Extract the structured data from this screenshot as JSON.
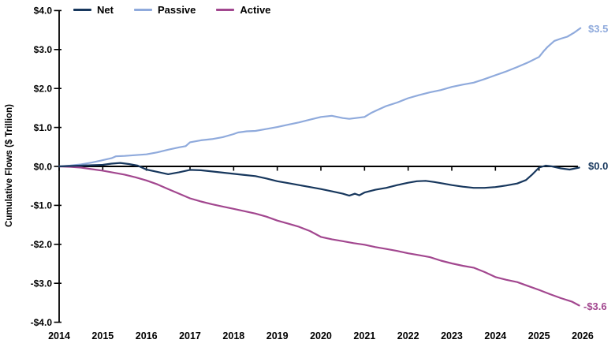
{
  "chart_data": {
    "type": "line",
    "title": "",
    "xlabel": "",
    "ylabel": "Cumulative Flows ($ Trillion)",
    "xlim": [
      2014,
      2026
    ],
    "ylim": [
      -4.0,
      4.0
    ],
    "grid": false,
    "legend_position": "top-left",
    "axis_color": "#000000",
    "x_ticks": [
      2014,
      2015,
      2016,
      2017,
      2018,
      2019,
      2020,
      2021,
      2022,
      2023,
      2024,
      2025,
      2026
    ],
    "y_ticks": [
      {
        "value": 4.0,
        "label": "$4.0"
      },
      {
        "value": 3.0,
        "label": "$3.0"
      },
      {
        "value": 2.0,
        "label": "$2.0"
      },
      {
        "value": 1.0,
        "label": "$1.0"
      },
      {
        "value": 0.0,
        "label": "$0.0"
      },
      {
        "value": -1.0,
        "label": "-$1.0"
      },
      {
        "value": -2.0,
        "label": "-$2.0"
      },
      {
        "value": -3.0,
        "label": "-$3.0"
      },
      {
        "value": -4.0,
        "label": "-$4.0"
      }
    ],
    "series": [
      {
        "name": "Net",
        "color": "#17375d",
        "end_label": "$0.0",
        "end_value": 0.0,
        "points": [
          [
            2014,
            0
          ],
          [
            2014.25,
            0.01
          ],
          [
            2014.5,
            0.02
          ],
          [
            2014.75,
            0.03
          ],
          [
            2015,
            0.04
          ],
          [
            2015.2,
            0.07
          ],
          [
            2015.4,
            0.09
          ],
          [
            2015.6,
            0.06
          ],
          [
            2015.8,
            0.02
          ],
          [
            2016,
            -0.08
          ],
          [
            2016.25,
            -0.14
          ],
          [
            2016.5,
            -0.2
          ],
          [
            2016.75,
            -0.15
          ],
          [
            2017,
            -0.09
          ],
          [
            2017.25,
            -0.1
          ],
          [
            2017.5,
            -0.13
          ],
          [
            2017.75,
            -0.16
          ],
          [
            2018,
            -0.19
          ],
          [
            2018.25,
            -0.22
          ],
          [
            2018.5,
            -0.25
          ],
          [
            2018.75,
            -0.31
          ],
          [
            2019,
            -0.38
          ],
          [
            2019.25,
            -0.43
          ],
          [
            2019.5,
            -0.48
          ],
          [
            2019.75,
            -0.53
          ],
          [
            2020,
            -0.58
          ],
          [
            2020.25,
            -0.64
          ],
          [
            2020.5,
            -0.7
          ],
          [
            2020.65,
            -0.75
          ],
          [
            2020.78,
            -0.7
          ],
          [
            2020.88,
            -0.74
          ],
          [
            2021,
            -0.67
          ],
          [
            2021.25,
            -0.6
          ],
          [
            2021.5,
            -0.55
          ],
          [
            2021.75,
            -0.48
          ],
          [
            2022,
            -0.42
          ],
          [
            2022.2,
            -0.38
          ],
          [
            2022.4,
            -0.37
          ],
          [
            2022.6,
            -0.4
          ],
          [
            2022.8,
            -0.44
          ],
          [
            2023,
            -0.48
          ],
          [
            2023.25,
            -0.52
          ],
          [
            2023.5,
            -0.55
          ],
          [
            2023.75,
            -0.55
          ],
          [
            2024,
            -0.53
          ],
          [
            2024.25,
            -0.49
          ],
          [
            2024.5,
            -0.44
          ],
          [
            2024.7,
            -0.35
          ],
          [
            2024.85,
            -0.2
          ],
          [
            2025,
            -0.03
          ],
          [
            2025.15,
            0.02
          ],
          [
            2025.3,
            0.0
          ],
          [
            2025.5,
            -0.05
          ],
          [
            2025.7,
            -0.08
          ],
          [
            2025.92,
            -0.03
          ]
        ]
      },
      {
        "name": "Passive",
        "color": "#8faadc",
        "end_label": "$3.5",
        "end_value": 3.5,
        "points": [
          [
            2014,
            0
          ],
          [
            2014.25,
            0.02
          ],
          [
            2014.5,
            0.05
          ],
          [
            2014.75,
            0.1
          ],
          [
            2015,
            0.16
          ],
          [
            2015.2,
            0.21
          ],
          [
            2015.3,
            0.26
          ],
          [
            2015.5,
            0.27
          ],
          [
            2015.75,
            0.29
          ],
          [
            2016,
            0.31
          ],
          [
            2016.25,
            0.36
          ],
          [
            2016.5,
            0.43
          ],
          [
            2016.75,
            0.49
          ],
          [
            2016.9,
            0.52
          ],
          [
            2017,
            0.62
          ],
          [
            2017.25,
            0.67
          ],
          [
            2017.5,
            0.7
          ],
          [
            2017.75,
            0.75
          ],
          [
            2018,
            0.83
          ],
          [
            2018.1,
            0.87
          ],
          [
            2018.3,
            0.9
          ],
          [
            2018.5,
            0.91
          ],
          [
            2018.75,
            0.96
          ],
          [
            2019,
            1.01
          ],
          [
            2019.25,
            1.07
          ],
          [
            2019.5,
            1.13
          ],
          [
            2019.75,
            1.2
          ],
          [
            2020,
            1.27
          ],
          [
            2020.25,
            1.3
          ],
          [
            2020.5,
            1.24
          ],
          [
            2020.65,
            1.22
          ],
          [
            2020.8,
            1.24
          ],
          [
            2021,
            1.27
          ],
          [
            2021.15,
            1.37
          ],
          [
            2021.3,
            1.45
          ],
          [
            2021.5,
            1.55
          ],
          [
            2021.75,
            1.64
          ],
          [
            2022,
            1.75
          ],
          [
            2022.25,
            1.83
          ],
          [
            2022.5,
            1.9
          ],
          [
            2022.75,
            1.96
          ],
          [
            2023,
            2.04
          ],
          [
            2023.25,
            2.1
          ],
          [
            2023.5,
            2.15
          ],
          [
            2023.75,
            2.24
          ],
          [
            2024,
            2.34
          ],
          [
            2024.25,
            2.44
          ],
          [
            2024.5,
            2.55
          ],
          [
            2024.75,
            2.67
          ],
          [
            2025,
            2.81
          ],
          [
            2025.1,
            2.95
          ],
          [
            2025.2,
            3.07
          ],
          [
            2025.35,
            3.22
          ],
          [
            2025.5,
            3.28
          ],
          [
            2025.65,
            3.33
          ],
          [
            2025.8,
            3.43
          ],
          [
            2025.95,
            3.55
          ]
        ]
      },
      {
        "name": "Active",
        "color": "#a2478f",
        "end_label": "-$3.6",
        "end_value": -3.6,
        "points": [
          [
            2014,
            0
          ],
          [
            2014.25,
            -0.01
          ],
          [
            2014.5,
            -0.03
          ],
          [
            2014.75,
            -0.07
          ],
          [
            2015,
            -0.11
          ],
          [
            2015.25,
            -0.16
          ],
          [
            2015.5,
            -0.21
          ],
          [
            2015.75,
            -0.28
          ],
          [
            2016,
            -0.36
          ],
          [
            2016.25,
            -0.46
          ],
          [
            2016.5,
            -0.58
          ],
          [
            2016.75,
            -0.7
          ],
          [
            2017,
            -0.82
          ],
          [
            2017.25,
            -0.9
          ],
          [
            2017.5,
            -0.97
          ],
          [
            2017.75,
            -1.03
          ],
          [
            2018,
            -1.09
          ],
          [
            2018.25,
            -1.15
          ],
          [
            2018.5,
            -1.21
          ],
          [
            2018.75,
            -1.29
          ],
          [
            2019,
            -1.39
          ],
          [
            2019.25,
            -1.47
          ],
          [
            2019.5,
            -1.55
          ],
          [
            2019.75,
            -1.66
          ],
          [
            2020,
            -1.81
          ],
          [
            2020.25,
            -1.87
          ],
          [
            2020.5,
            -1.92
          ],
          [
            2020.75,
            -1.97
          ],
          [
            2021,
            -2.01
          ],
          [
            2021.25,
            -2.07
          ],
          [
            2021.5,
            -2.12
          ],
          [
            2021.75,
            -2.17
          ],
          [
            2022,
            -2.23
          ],
          [
            2022.25,
            -2.28
          ],
          [
            2022.5,
            -2.33
          ],
          [
            2022.75,
            -2.42
          ],
          [
            2023,
            -2.49
          ],
          [
            2023.25,
            -2.55
          ],
          [
            2023.5,
            -2.6
          ],
          [
            2023.75,
            -2.71
          ],
          [
            2024,
            -2.84
          ],
          [
            2024.25,
            -2.91
          ],
          [
            2024.5,
            -2.97
          ],
          [
            2024.75,
            -3.07
          ],
          [
            2025,
            -3.17
          ],
          [
            2025.25,
            -3.28
          ],
          [
            2025.5,
            -3.38
          ],
          [
            2025.75,
            -3.47
          ],
          [
            2025.92,
            -3.57
          ]
        ]
      }
    ]
  }
}
